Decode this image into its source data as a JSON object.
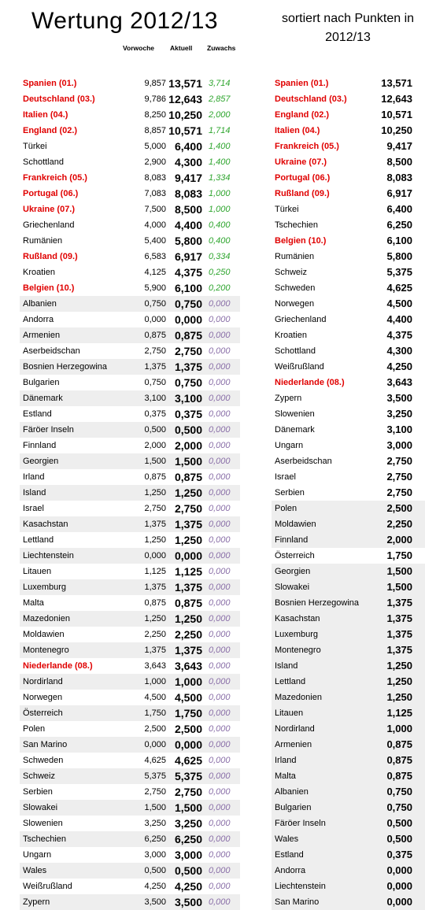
{
  "title": "Wertung 2012/13",
  "subtitle": "sortiert nach Punkten in 2012/13",
  "headers": {
    "prev": "Vorwoche",
    "current": "Aktuell",
    "gain": "Zuwachs"
  },
  "left_rows": [
    {
      "name": "Spanien (01.)",
      "prev": "9,857",
      "current": "13,571",
      "gain": "3,714",
      "highlight": true,
      "shaded": false
    },
    {
      "name": "Deutschland (03.)",
      "prev": "9,786",
      "current": "12,643",
      "gain": "2,857",
      "highlight": true,
      "shaded": false
    },
    {
      "name": "Italien (04.)",
      "prev": "8,250",
      "current": "10,250",
      "gain": "2,000",
      "highlight": true,
      "shaded": false
    },
    {
      "name": "England (02.)",
      "prev": "8,857",
      "current": "10,571",
      "gain": "1,714",
      "highlight": true,
      "shaded": false
    },
    {
      "name": "Türkei",
      "prev": "5,000",
      "current": "6,400",
      "gain": "1,400",
      "highlight": false,
      "shaded": false
    },
    {
      "name": "Schottland",
      "prev": "2,900",
      "current": "4,300",
      "gain": "1,400",
      "highlight": false,
      "shaded": false
    },
    {
      "name": "Frankreich (05.)",
      "prev": "8,083",
      "current": "9,417",
      "gain": "1,334",
      "highlight": true,
      "shaded": false
    },
    {
      "name": "Portugal (06.)",
      "prev": "7,083",
      "current": "8,083",
      "gain": "1,000",
      "highlight": true,
      "shaded": false
    },
    {
      "name": "Ukraine (07.)",
      "prev": "7,500",
      "current": "8,500",
      "gain": "1,000",
      "highlight": true,
      "shaded": false
    },
    {
      "name": "Griechenland",
      "prev": "4,000",
      "current": "4,400",
      "gain": "0,400",
      "highlight": false,
      "shaded": false
    },
    {
      "name": "Rumänien",
      "prev": "5,400",
      "current": "5,800",
      "gain": "0,400",
      "highlight": false,
      "shaded": false
    },
    {
      "name": "Rußland (09.)",
      "prev": "6,583",
      "current": "6,917",
      "gain": "0,334",
      "highlight": true,
      "shaded": false
    },
    {
      "name": "Kroatien",
      "prev": "4,125",
      "current": "4,375",
      "gain": "0,250",
      "highlight": false,
      "shaded": false
    },
    {
      "name": "Belgien (10.)",
      "prev": "5,900",
      "current": "6,100",
      "gain": "0,200",
      "highlight": true,
      "shaded": false
    },
    {
      "name": "Albanien",
      "prev": "0,750",
      "current": "0,750",
      "gain": "0,000",
      "highlight": false,
      "shaded": true
    },
    {
      "name": "Andorra",
      "prev": "0,000",
      "current": "0,000",
      "gain": "0,000",
      "highlight": false,
      "shaded": false
    },
    {
      "name": "Armenien",
      "prev": "0,875",
      "current": "0,875",
      "gain": "0,000",
      "highlight": false,
      "shaded": true
    },
    {
      "name": "Aserbeidschan",
      "prev": "2,750",
      "current": "2,750",
      "gain": "0,000",
      "highlight": false,
      "shaded": false
    },
    {
      "name": "Bosnien Herzegowina",
      "prev": "1,375",
      "current": "1,375",
      "gain": "0,000",
      "highlight": false,
      "shaded": true
    },
    {
      "name": "Bulgarien",
      "prev": "0,750",
      "current": "0,750",
      "gain": "0,000",
      "highlight": false,
      "shaded": false
    },
    {
      "name": "Dänemark",
      "prev": "3,100",
      "current": "3,100",
      "gain": "0,000",
      "highlight": false,
      "shaded": true
    },
    {
      "name": "Estland",
      "prev": "0,375",
      "current": "0,375",
      "gain": "0,000",
      "highlight": false,
      "shaded": false
    },
    {
      "name": "Färöer Inseln",
      "prev": "0,500",
      "current": "0,500",
      "gain": "0,000",
      "highlight": false,
      "shaded": true
    },
    {
      "name": "Finnland",
      "prev": "2,000",
      "current": "2,000",
      "gain": "0,000",
      "highlight": false,
      "shaded": false
    },
    {
      "name": "Georgien",
      "prev": "1,500",
      "current": "1,500",
      "gain": "0,000",
      "highlight": false,
      "shaded": true
    },
    {
      "name": "Irland",
      "prev": "0,875",
      "current": "0,875",
      "gain": "0,000",
      "highlight": false,
      "shaded": false
    },
    {
      "name": "Island",
      "prev": "1,250",
      "current": "1,250",
      "gain": "0,000",
      "highlight": false,
      "shaded": true
    },
    {
      "name": "Israel",
      "prev": "2,750",
      "current": "2,750",
      "gain": "0,000",
      "highlight": false,
      "shaded": false
    },
    {
      "name": "Kasachstan",
      "prev": "1,375",
      "current": "1,375",
      "gain": "0,000",
      "highlight": false,
      "shaded": true
    },
    {
      "name": "Lettland",
      "prev": "1,250",
      "current": "1,250",
      "gain": "0,000",
      "highlight": false,
      "shaded": false
    },
    {
      "name": "Liechtenstein",
      "prev": "0,000",
      "current": "0,000",
      "gain": "0,000",
      "highlight": false,
      "shaded": true
    },
    {
      "name": "Litauen",
      "prev": "1,125",
      "current": "1,125",
      "gain": "0,000",
      "highlight": false,
      "shaded": false
    },
    {
      "name": "Luxemburg",
      "prev": "1,375",
      "current": "1,375",
      "gain": "0,000",
      "highlight": false,
      "shaded": true
    },
    {
      "name": "Malta",
      "prev": "0,875",
      "current": "0,875",
      "gain": "0,000",
      "highlight": false,
      "shaded": false
    },
    {
      "name": "Mazedonien",
      "prev": "1,250",
      "current": "1,250",
      "gain": "0,000",
      "highlight": false,
      "shaded": true
    },
    {
      "name": "Moldawien",
      "prev": "2,250",
      "current": "2,250",
      "gain": "0,000",
      "highlight": false,
      "shaded": false
    },
    {
      "name": "Montenegro",
      "prev": "1,375",
      "current": "1,375",
      "gain": "0,000",
      "highlight": false,
      "shaded": true
    },
    {
      "name": "Niederlande (08.)",
      "prev": "3,643",
      "current": "3,643",
      "gain": "0,000",
      "highlight": true,
      "shaded": false
    },
    {
      "name": "Nordirland",
      "prev": "1,000",
      "current": "1,000",
      "gain": "0,000",
      "highlight": false,
      "shaded": true
    },
    {
      "name": "Norwegen",
      "prev": "4,500",
      "current": "4,500",
      "gain": "0,000",
      "highlight": false,
      "shaded": false
    },
    {
      "name": "Österreich",
      "prev": "1,750",
      "current": "1,750",
      "gain": "0,000",
      "highlight": false,
      "shaded": true
    },
    {
      "name": "Polen",
      "prev": "2,500",
      "current": "2,500",
      "gain": "0,000",
      "highlight": false,
      "shaded": false
    },
    {
      "name": "San Marino",
      "prev": "0,000",
      "current": "0,000",
      "gain": "0,000",
      "highlight": false,
      "shaded": true
    },
    {
      "name": "Schweden",
      "prev": "4,625",
      "current": "4,625",
      "gain": "0,000",
      "highlight": false,
      "shaded": false
    },
    {
      "name": "Schweiz",
      "prev": "5,375",
      "current": "5,375",
      "gain": "0,000",
      "highlight": false,
      "shaded": true
    },
    {
      "name": "Serbien",
      "prev": "2,750",
      "current": "2,750",
      "gain": "0,000",
      "highlight": false,
      "shaded": false
    },
    {
      "name": "Slowakei",
      "prev": "1,500",
      "current": "1,500",
      "gain": "0,000",
      "highlight": false,
      "shaded": true
    },
    {
      "name": "Slowenien",
      "prev": "3,250",
      "current": "3,250",
      "gain": "0,000",
      "highlight": false,
      "shaded": false
    },
    {
      "name": "Tschechien",
      "prev": "6,250",
      "current": "6,250",
      "gain": "0,000",
      "highlight": false,
      "shaded": true
    },
    {
      "name": "Ungarn",
      "prev": "3,000",
      "current": "3,000",
      "gain": "0,000",
      "highlight": false,
      "shaded": false
    },
    {
      "name": "Wales",
      "prev": "0,500",
      "current": "0,500",
      "gain": "0,000",
      "highlight": false,
      "shaded": true
    },
    {
      "name": "Weißrußland",
      "prev": "4,250",
      "current": "4,250",
      "gain": "0,000",
      "highlight": false,
      "shaded": false
    },
    {
      "name": "Zypern",
      "prev": "3,500",
      "current": "3,500",
      "gain": "0,000",
      "highlight": false,
      "shaded": true
    }
  ],
  "right_rows": [
    {
      "name": "Spanien (01.)",
      "points": "13,571",
      "highlight": true,
      "shaded": false
    },
    {
      "name": "Deutschland (03.)",
      "points": "12,643",
      "highlight": true,
      "shaded": false
    },
    {
      "name": "England (02.)",
      "points": "10,571",
      "highlight": true,
      "shaded": false
    },
    {
      "name": "Italien (04.)",
      "points": "10,250",
      "highlight": true,
      "shaded": false
    },
    {
      "name": "Frankreich (05.)",
      "points": "9,417",
      "highlight": true,
      "shaded": false
    },
    {
      "name": "Ukraine (07.)",
      "points": "8,500",
      "highlight": true,
      "shaded": false
    },
    {
      "name": "Portugal (06.)",
      "points": "8,083",
      "highlight": true,
      "shaded": false
    },
    {
      "name": "Rußland (09.)",
      "points": "6,917",
      "highlight": true,
      "shaded": false
    },
    {
      "name": "Türkei",
      "points": "6,400",
      "highlight": false,
      "shaded": false
    },
    {
      "name": "Tschechien",
      "points": "6,250",
      "highlight": false,
      "shaded": false
    },
    {
      "name": "Belgien (10.)",
      "points": "6,100",
      "highlight": true,
      "shaded": false
    },
    {
      "name": "Rumänien",
      "points": "5,800",
      "highlight": false,
      "shaded": false
    },
    {
      "name": "Schweiz",
      "points": "5,375",
      "highlight": false,
      "shaded": false
    },
    {
      "name": "Schweden",
      "points": "4,625",
      "highlight": false,
      "shaded": false
    },
    {
      "name": "Norwegen",
      "points": "4,500",
      "highlight": false,
      "shaded": false
    },
    {
      "name": "Griechenland",
      "points": "4,400",
      "highlight": false,
      "shaded": false
    },
    {
      "name": "Kroatien",
      "points": "4,375",
      "highlight": false,
      "shaded": false
    },
    {
      "name": "Schottland",
      "points": "4,300",
      "highlight": false,
      "shaded": false
    },
    {
      "name": "Weißrußland",
      "points": "4,250",
      "highlight": false,
      "shaded": false
    },
    {
      "name": "Niederlande (08.)",
      "points": "3,643",
      "highlight": true,
      "shaded": false
    },
    {
      "name": "Zypern",
      "points": "3,500",
      "highlight": false,
      "shaded": false
    },
    {
      "name": "Slowenien",
      "points": "3,250",
      "highlight": false,
      "shaded": false
    },
    {
      "name": "Dänemark",
      "points": "3,100",
      "highlight": false,
      "shaded": false
    },
    {
      "name": "Ungarn",
      "points": "3,000",
      "highlight": false,
      "shaded": false
    },
    {
      "name": "Aserbeidschan",
      "points": "2,750",
      "highlight": false,
      "shaded": false
    },
    {
      "name": "Israel",
      "points": "2,750",
      "highlight": false,
      "shaded": false
    },
    {
      "name": "Serbien",
      "points": "2,750",
      "highlight": false,
      "shaded": false
    },
    {
      "name": "Polen",
      "points": "2,500",
      "highlight": false,
      "shaded": true
    },
    {
      "name": "Moldawien",
      "points": "2,250",
      "highlight": false,
      "shaded": true
    },
    {
      "name": "Finnland",
      "points": "2,000",
      "highlight": false,
      "shaded": true
    },
    {
      "name": "Österreich",
      "points": "1,750",
      "highlight": false,
      "shaded": false
    },
    {
      "name": "Georgien",
      "points": "1,500",
      "highlight": false,
      "shaded": true
    },
    {
      "name": "Slowakei",
      "points": "1,500",
      "highlight": false,
      "shaded": true
    },
    {
      "name": "Bosnien Herzegowina",
      "points": "1,375",
      "highlight": false,
      "shaded": true
    },
    {
      "name": "Kasachstan",
      "points": "1,375",
      "highlight": false,
      "shaded": true
    },
    {
      "name": "Luxemburg",
      "points": "1,375",
      "highlight": false,
      "shaded": true
    },
    {
      "name": "Montenegro",
      "points": "1,375",
      "highlight": false,
      "shaded": true
    },
    {
      "name": "Island",
      "points": "1,250",
      "highlight": false,
      "shaded": true
    },
    {
      "name": "Lettland",
      "points": "1,250",
      "highlight": false,
      "shaded": true
    },
    {
      "name": "Mazedonien",
      "points": "1,250",
      "highlight": false,
      "shaded": true
    },
    {
      "name": "Litauen",
      "points": "1,125",
      "highlight": false,
      "shaded": true
    },
    {
      "name": "Nordirland",
      "points": "1,000",
      "highlight": false,
      "shaded": true
    },
    {
      "name": "Armenien",
      "points": "0,875",
      "highlight": false,
      "shaded": true
    },
    {
      "name": "Irland",
      "points": "0,875",
      "highlight": false,
      "shaded": true
    },
    {
      "name": "Malta",
      "points": "0,875",
      "highlight": false,
      "shaded": true
    },
    {
      "name": "Albanien",
      "points": "0,750",
      "highlight": false,
      "shaded": true
    },
    {
      "name": "Bulgarien",
      "points": "0,750",
      "highlight": false,
      "shaded": true
    },
    {
      "name": "Färöer Inseln",
      "points": "0,500",
      "highlight": false,
      "shaded": true
    },
    {
      "name": "Wales",
      "points": "0,500",
      "highlight": false,
      "shaded": true
    },
    {
      "name": "Estland",
      "points": "0,375",
      "highlight": false,
      "shaded": true
    },
    {
      "name": "Andorra",
      "points": "0,000",
      "highlight": false,
      "shaded": true
    },
    {
      "name": "Liechtenstein",
      "points": "0,000",
      "highlight": false,
      "shaded": true
    },
    {
      "name": "San Marino",
      "points": "0,000",
      "highlight": false,
      "shaded": true
    }
  ]
}
